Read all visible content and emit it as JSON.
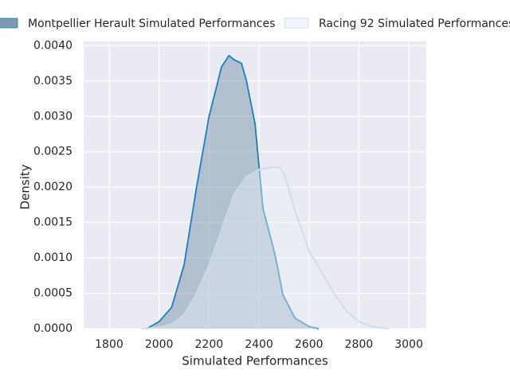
{
  "chart_data": {
    "type": "kde",
    "xlabel": "Simulated Performances",
    "ylabel": "Density",
    "xlim": [
      1698,
      3070
    ],
    "ylim": [
      0,
      0.00406
    ],
    "xticks": [
      1800,
      2000,
      2200,
      2400,
      2600,
      2800,
      3000
    ],
    "yticks": [
      {
        "value": 0,
        "label": "0.0000"
      },
      {
        "value": 0.0005,
        "label": "0.0005"
      },
      {
        "value": 0.001,
        "label": "0.0010"
      },
      {
        "value": 0.0015,
        "label": "0.0015"
      },
      {
        "value": 0.002,
        "label": "0.0020"
      },
      {
        "value": 0.0025,
        "label": "0.0025"
      },
      {
        "value": 0.003,
        "label": "0.0030"
      },
      {
        "value": 0.0035,
        "label": "0.0035"
      },
      {
        "value": 0.004,
        "label": "0.0040"
      }
    ],
    "grid": true,
    "legend": "top",
    "series": [
      {
        "name": "Montpellier Herault Simulated Performances",
        "color": "#1a80bb",
        "fill": "#5f7f9c",
        "x": [
          1950,
          2000,
          2050,
          2100,
          2150,
          2200,
          2250,
          2280,
          2300,
          2330,
          2350,
          2384,
          2416,
          2464,
          2496,
          2544,
          2600,
          2640
        ],
        "values": [
          0,
          0.0001,
          0.0003,
          0.0009,
          0.002,
          0.003,
          0.0037,
          0.00386,
          0.0038,
          0.00375,
          0.0035,
          0.0029,
          0.0017,
          0.00105,
          0.00048,
          0.00015,
          3e-05,
          0
        ]
      },
      {
        "name": "Racing 92 Simulated Performances",
        "color": "#c6dcef",
        "fill": "#eef3fa",
        "x": [
          1930,
          2000,
          2050,
          2100,
          2150,
          2200,
          2250,
          2300,
          2350,
          2400,
          2450,
          2480,
          2500,
          2550,
          2600,
          2650,
          2700,
          2750,
          2800,
          2850,
          2920
        ],
        "values": [
          0,
          2e-05,
          6e-05,
          0.0002,
          0.0005,
          0.0009,
          0.0014,
          0.0019,
          0.00215,
          0.00225,
          0.00228,
          0.00228,
          0.0022,
          0.0016,
          0.0011,
          0.0008,
          0.0005,
          0.00025,
          0.0001,
          3e-05,
          0
        ]
      }
    ]
  }
}
